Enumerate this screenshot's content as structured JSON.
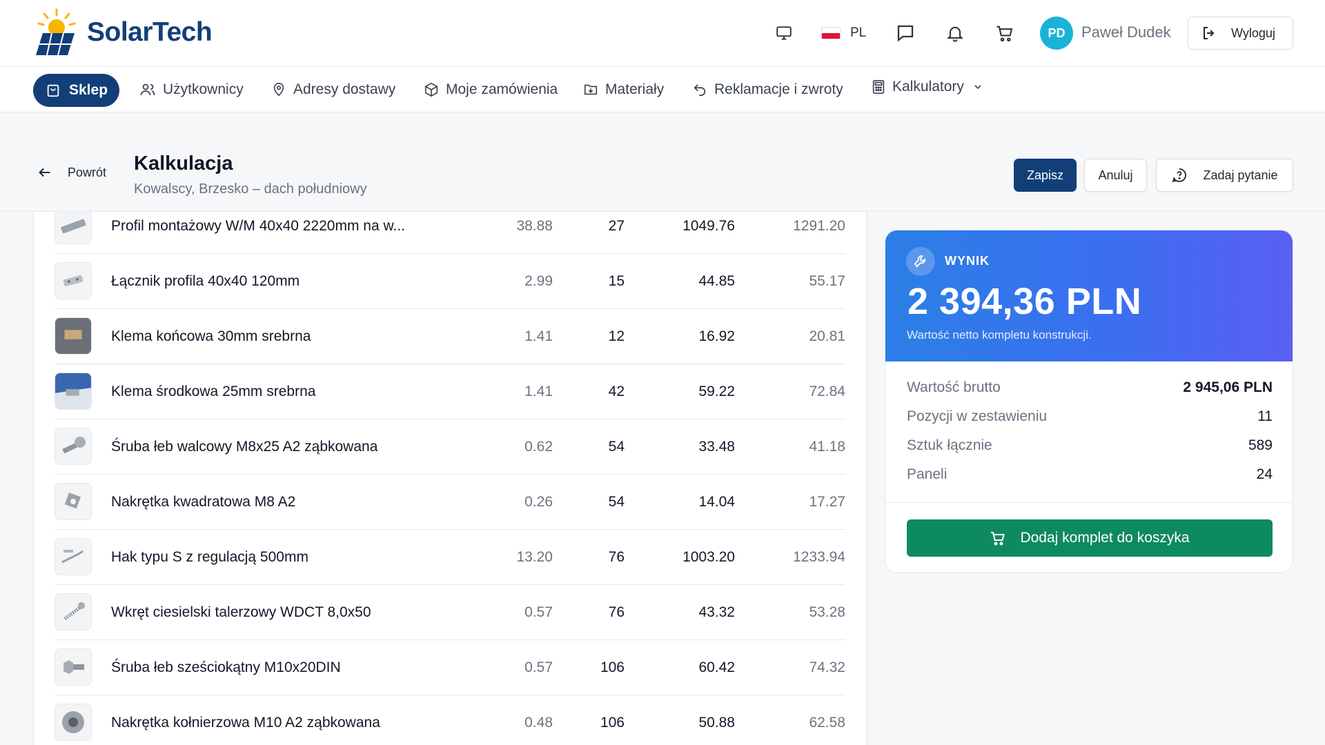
{
  "header": {
    "brand": "SolarTech",
    "language": "PL",
    "user_initials": "PD",
    "user_name": "Paweł Dudek",
    "logout_label": "Wyloguj"
  },
  "nav": {
    "active": "Sklep",
    "items": [
      "Użytkownicy",
      "Adresy dostawy",
      "Moje zamówienia",
      "Materiały",
      "Reklamacje i zwroty",
      "Kalkulatory"
    ]
  },
  "page": {
    "back_label": "Powrót",
    "title": "Kalkulacja",
    "subtitle": "Kowalscy, Brzesko – dach południowy",
    "save_label": "Zapisz",
    "cancel_label": "Anuluj",
    "ask_label": "Zadaj pytanie"
  },
  "table": {
    "rows": [
      {
        "name": "Profil montażowy W/M 40x40 2220mm na w...",
        "price": "38.88",
        "qty": "27",
        "net": "1049.76",
        "gross": "1291.20",
        "thumb": "rail-profile-icon"
      },
      {
        "name": "Łącznik profila 40x40 120mm",
        "price": "2.99",
        "qty": "15",
        "net": "44.85",
        "gross": "55.17",
        "thumb": "connector-icon"
      },
      {
        "name": "Klema końcowa 30mm srebrna",
        "price": "1.41",
        "qty": "12",
        "net": "16.92",
        "gross": "20.81",
        "thumb": "end-clamp-icon"
      },
      {
        "name": "Klema środkowa 25mm srebrna",
        "price": "1.41",
        "qty": "42",
        "net": "59.22",
        "gross": "72.84",
        "thumb": "mid-clamp-icon"
      },
      {
        "name": "Śruba łeb walcowy M8x25 A2 ząbkowana",
        "price": "0.62",
        "qty": "54",
        "net": "33.48",
        "gross": "41.18",
        "thumb": "bolt-icon"
      },
      {
        "name": "Nakrętka kwadratowa M8 A2",
        "price": "0.26",
        "qty": "54",
        "net": "14.04",
        "gross": "17.27",
        "thumb": "square-nut-icon"
      },
      {
        "name": "Hak typu S z regulacją 500mm",
        "price": "13.20",
        "qty": "76",
        "net": "1003.20",
        "gross": "1233.94",
        "thumb": "roof-hook-icon"
      },
      {
        "name": "Wkręt ciesielski talerzowy WDCT 8,0x50",
        "price": "0.57",
        "qty": "76",
        "net": "43.32",
        "gross": "53.28",
        "thumb": "screw-icon"
      },
      {
        "name": "Śruba łeb sześciokątny M10x20DIN",
        "price": "0.57",
        "qty": "106",
        "net": "60.42",
        "gross": "74.32",
        "thumb": "hex-bolt-icon"
      },
      {
        "name": "Nakrętka kołnierzowa M10 A2 ząbkowana",
        "price": "0.48",
        "qty": "106",
        "net": "50.88",
        "gross": "62.58",
        "thumb": "flange-nut-icon"
      }
    ]
  },
  "result": {
    "label": "WYNIK",
    "value": "2 394,36 PLN",
    "subtitle": "Wartość netto kompletu konstrukcji.",
    "stats": [
      {
        "label": "Wartość brutto",
        "value": "2 945,06 PLN"
      },
      {
        "label": "Pozycji w zestawieniu",
        "value": "11"
      },
      {
        "label": "Sztuk łącznie",
        "value": "589"
      },
      {
        "label": "Paneli",
        "value": "24"
      }
    ],
    "add_to_cart_label": "Dodaj komplet do koszyka"
  },
  "colors": {
    "brand_navy": "#123f78",
    "accent_blue": "#2b7fe6",
    "cart_green": "#0e8a5f",
    "avatar_cyan": "#1ab3d8"
  }
}
